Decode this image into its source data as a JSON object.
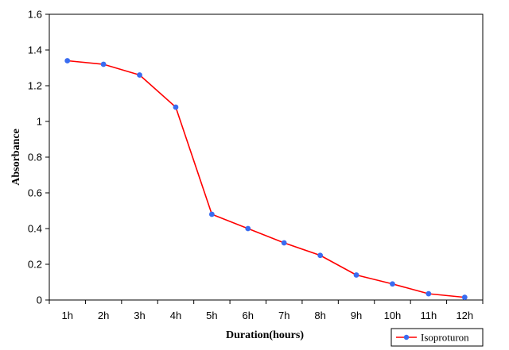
{
  "chart_data": {
    "type": "line",
    "title": "",
    "xlabel": "Duration(hours)",
    "ylabel": "Absorbance",
    "categories": [
      "1h",
      "2h",
      "3h",
      "4h",
      "5h",
      "6h",
      "7h",
      "8h",
      "9h",
      "10h",
      "11h",
      "12h"
    ],
    "series": [
      {
        "name": "Isoproturon",
        "values": [
          1.34,
          1.32,
          1.26,
          1.08,
          0.48,
          0.4,
          0.32,
          0.25,
          0.14,
          0.09,
          0.035,
          0.015
        ],
        "line_color": "#ff0000",
        "marker_color": "#3a6cf0"
      }
    ],
    "ylim": [
      0,
      1.6
    ],
    "yticks": [
      "0",
      "0.2",
      "0.4",
      "0.6",
      "0.8",
      "1",
      "1.2",
      "1.4",
      "1.6"
    ],
    "grid": false,
    "legend_position": "bottom-right"
  }
}
